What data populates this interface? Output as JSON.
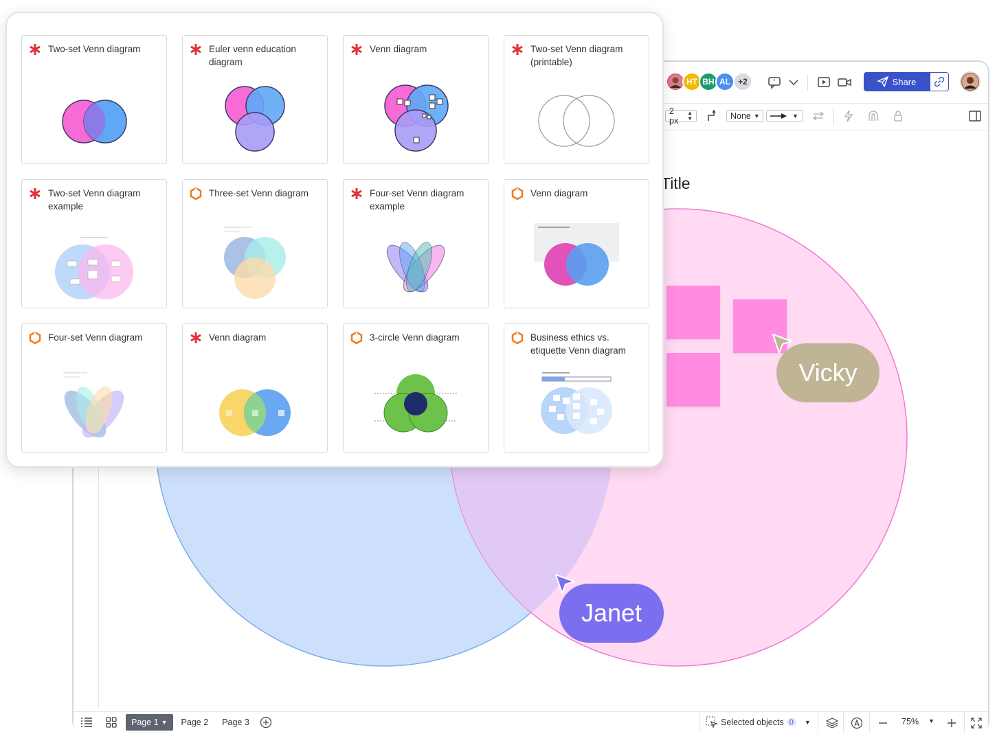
{
  "toolbar": {
    "avatars": [
      {
        "initials": "HT",
        "color": "#f5b800"
      },
      {
        "initials": "BH",
        "color": "#1a9e6e"
      },
      {
        "initials": "AL",
        "color": "#4a8ff0"
      },
      {
        "initials": "+2",
        "color": "#d9dbe1"
      }
    ],
    "share_label": "Share",
    "line_width": "2 px",
    "line_start": "None",
    "icons": [
      "user-photo-icon",
      "comment-icon",
      "chevron-down-icon",
      "present-icon",
      "video-icon",
      "send-icon",
      "link-icon",
      "connector-icon",
      "swap-icon",
      "lightning-icon",
      "magnet-icon",
      "lock-icon",
      "panel-toggle-icon"
    ]
  },
  "canvas": {
    "title": "Title",
    "cursors": [
      {
        "name": "Vicky",
        "color": "#bfb595"
      },
      {
        "name": "Janet",
        "color": "#7b6ff0"
      }
    ]
  },
  "statusbar": {
    "pages": [
      "Page 1",
      "Page 2",
      "Page 3"
    ],
    "selected_objects_label": "Selected objects",
    "selected_count": "0",
    "zoom": "75%"
  },
  "templates": {
    "items": [
      {
        "title": "Two-set Venn diagram",
        "icon": "asterisk-icon"
      },
      {
        "title": "Euler venn education diagram",
        "icon": "asterisk-icon"
      },
      {
        "title": "Venn diagram",
        "icon": "asterisk-icon"
      },
      {
        "title": "Two-set Venn diagram (printable)",
        "icon": "asterisk-icon"
      },
      {
        "title": "Two-set Venn diagram example",
        "icon": "asterisk-icon"
      },
      {
        "title": "Three-set Venn diagram",
        "icon": "lucid-hex-icon"
      },
      {
        "title": "Four-set Venn diagram example",
        "icon": "asterisk-icon"
      },
      {
        "title": "Venn diagram",
        "icon": "lucid-hex-icon"
      },
      {
        "title": "Four-set Venn diagram",
        "icon": "lucid-hex-icon"
      },
      {
        "title": "Venn diagram",
        "icon": "asterisk-icon"
      },
      {
        "title": "3-circle Venn diagram",
        "icon": "lucid-hex-icon"
      },
      {
        "title": "Business ethics vs. etiquette Venn diagram",
        "icon": "lucid-hex-icon"
      }
    ]
  }
}
